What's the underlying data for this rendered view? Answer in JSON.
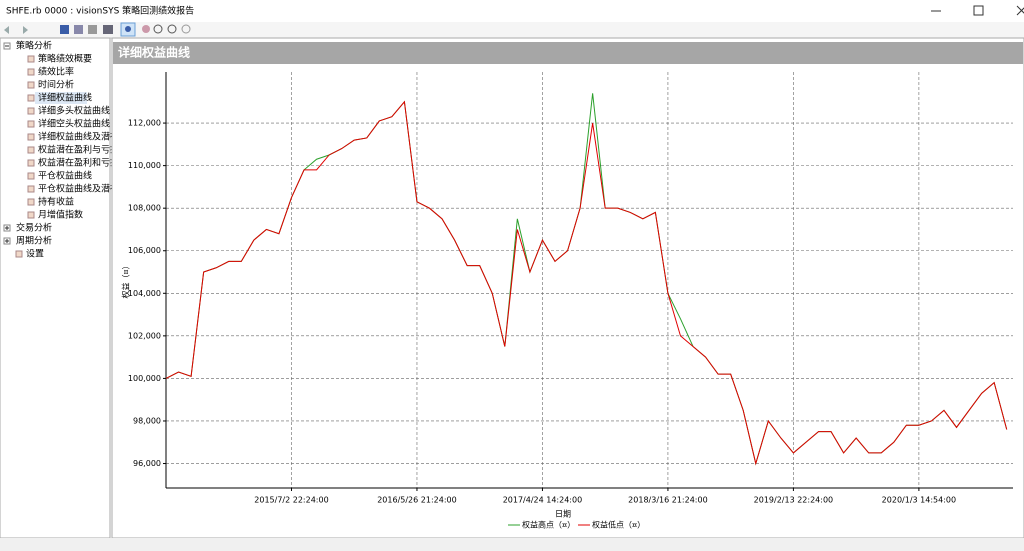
{
  "window": {
    "title": "SHFE.rb 0000 : visionSYS 策略回测绩效报告"
  },
  "sidebar": {
    "groups": [
      {
        "label": "策略分析",
        "items": [
          "策略绩效概要",
          "绩效比率",
          "时间分析",
          "详细权益曲线",
          "详细多头权益曲线",
          "详细空头权益曲线",
          "详细权益曲线及潜在",
          "权益潜在盈利与亏损",
          "权益潜在盈利和亏损",
          "平仓权益曲线",
          "平仓权益曲线及潜在",
          "持有收益",
          "月增值指数"
        ]
      },
      {
        "label": "交易分析",
        "items": []
      },
      {
        "label": "周期分析",
        "items": []
      },
      {
        "label": "设置",
        "items": []
      }
    ]
  },
  "chart_data": {
    "type": "line",
    "title": "详细权益曲线",
    "x_label": "日期",
    "y_label": "权益（¤）",
    "categories": [
      null,
      null,
      null,
      null,
      null,
      null,
      null,
      null,
      null,
      null,
      "2015/7/2 22:24:00",
      null,
      null,
      null,
      null,
      null,
      null,
      null,
      null,
      null,
      "2016/5/26 21:24:00",
      null,
      null,
      null,
      null,
      null,
      null,
      null,
      null,
      null,
      "2017/4/24 14:24:00",
      null,
      null,
      null,
      null,
      null,
      null,
      null,
      null,
      null,
      "2018/3/16 21:24:00",
      null,
      null,
      null,
      null,
      null,
      null,
      null,
      null,
      null,
      "2019/2/13 22:24:00",
      null,
      null,
      null,
      null,
      null,
      null,
      null,
      null,
      null,
      "2020/1/3 14:54:00",
      null,
      null,
      null,
      null,
      null,
      null,
      null
    ],
    "series": [
      {
        "name": "权益高点（¤）",
        "color": "#2ca02c",
        "values": [
          100000,
          100300,
          100100,
          105000,
          105200,
          105500,
          105500,
          106500,
          107000,
          106800,
          108500,
          109800,
          110300,
          110500,
          110800,
          111200,
          111300,
          112100,
          112300,
          113000,
          108300,
          108000,
          107500,
          106500,
          105300,
          105300,
          104000,
          101500,
          107500,
          105000,
          106500,
          105500,
          106000,
          108000,
          113400,
          108000,
          108000,
          107800,
          107500,
          107800,
          104000,
          102800,
          101500,
          101000,
          100200,
          100200,
          98500,
          96000,
          98000,
          97200,
          96500,
          97000,
          97500,
          97500,
          96500,
          97200,
          96500,
          96500,
          97000,
          97800,
          97800,
          98000,
          98500,
          97700,
          98500,
          99300,
          99800,
          97600
        ]
      },
      {
        "name": "权益低点（¤）",
        "color": "#e00000",
        "values": [
          100000,
          100300,
          100100,
          105000,
          105200,
          105500,
          105500,
          106500,
          107000,
          106800,
          108500,
          109800,
          109800,
          110500,
          110800,
          111200,
          111300,
          112100,
          112300,
          113000,
          108300,
          108000,
          107500,
          106500,
          105300,
          105300,
          104000,
          101500,
          107000,
          105000,
          106500,
          105500,
          106000,
          108000,
          112000,
          108000,
          108000,
          107800,
          107500,
          107800,
          104000,
          102000,
          101500,
          101000,
          100200,
          100200,
          98500,
          96000,
          98000,
          97200,
          96500,
          97000,
          97500,
          97500,
          96500,
          97200,
          96500,
          96500,
          97000,
          97800,
          97800,
          98000,
          98500,
          97700,
          98500,
          99300,
          99800,
          97600
        ]
      }
    ],
    "ylim": [
      94850,
      114400
    ],
    "yticks": [
      {
        "value": 96000,
        "label": "96,000"
      },
      {
        "value": 98000,
        "label": "98,000"
      },
      {
        "value": 100000,
        "label": "100,000"
      },
      {
        "value": 102000,
        "label": "102,000"
      },
      {
        "value": 104000,
        "label": "104,000"
      },
      {
        "value": 106000,
        "label": "106,000"
      },
      {
        "value": 108000,
        "label": "108,000"
      },
      {
        "value": 110000,
        "label": "110,000"
      },
      {
        "value": 112000,
        "label": "112,000"
      }
    ],
    "grid": true,
    "legend": "bottom"
  }
}
